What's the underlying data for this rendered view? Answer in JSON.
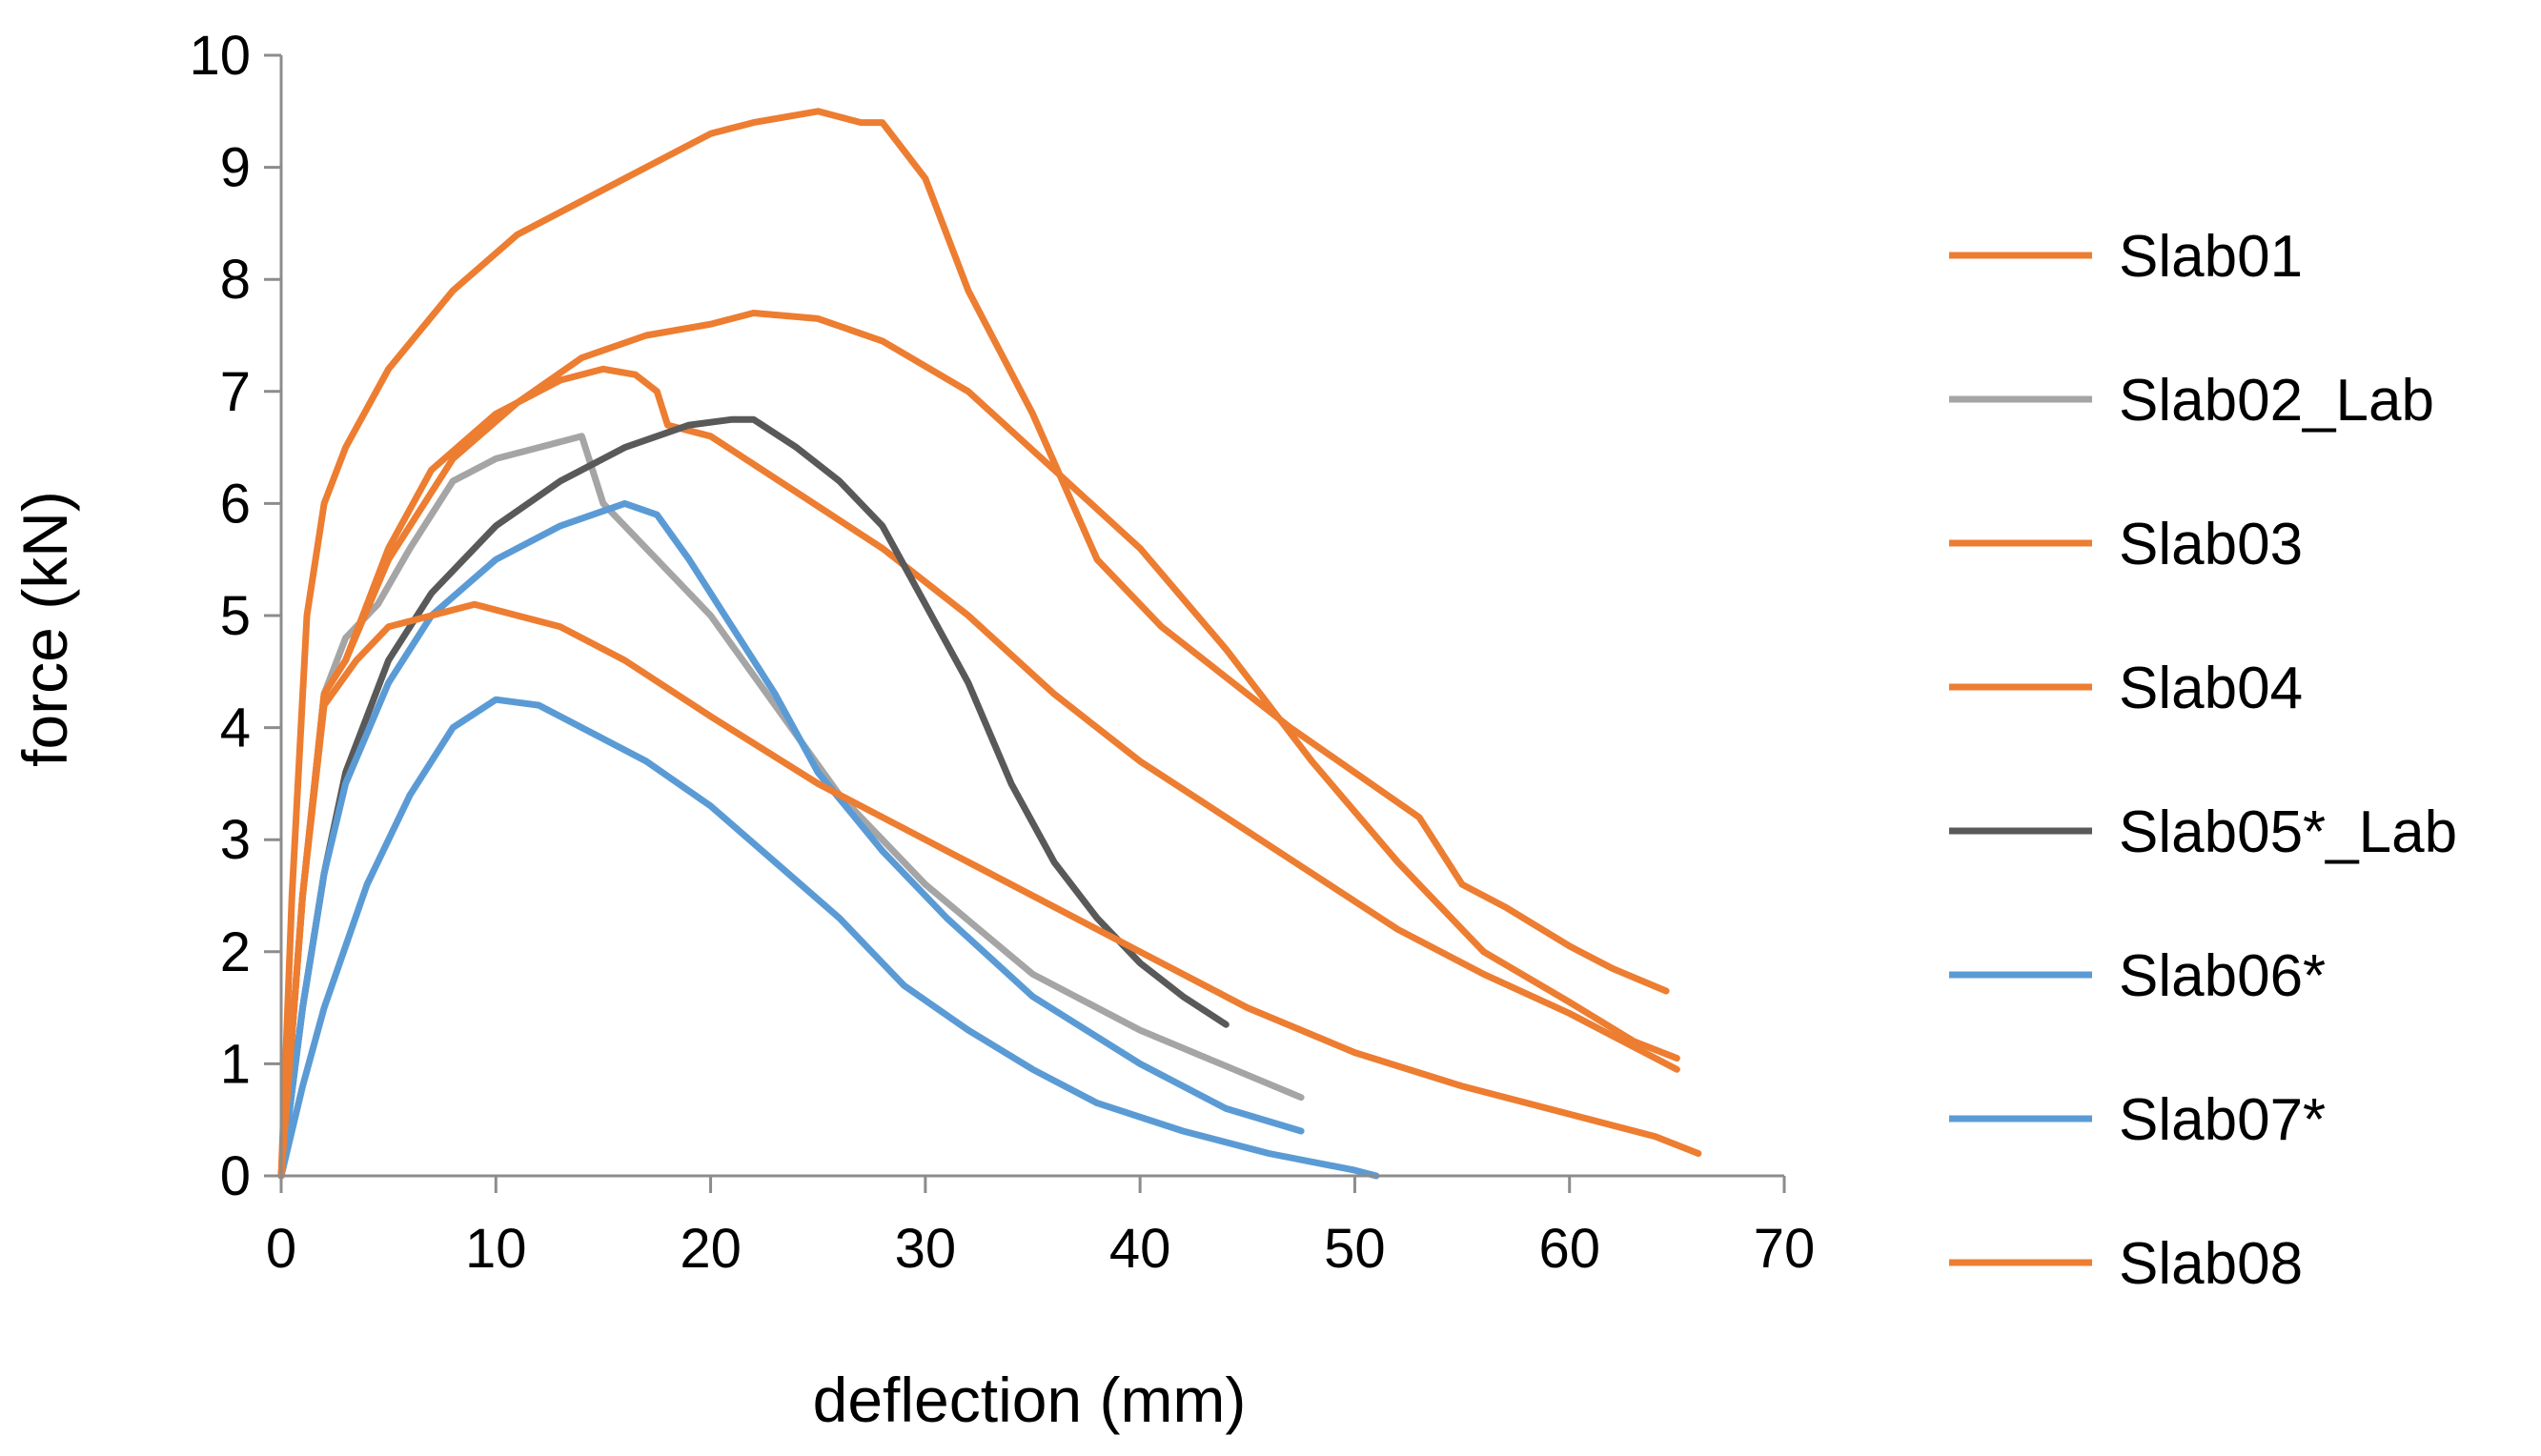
{
  "chart_data": {
    "type": "line",
    "title": "",
    "xlabel": "deflection (mm)",
    "ylabel": "force (kN)",
    "xlim": [
      0,
      70
    ],
    "ylim": [
      0,
      10
    ],
    "xticks": [
      0,
      10,
      20,
      30,
      40,
      50,
      60,
      70
    ],
    "yticks": [
      0,
      1,
      2,
      3,
      4,
      5,
      6,
      7,
      8,
      9,
      10
    ],
    "grid": false,
    "legend_position": "right",
    "series": [
      {
        "name": "Slab01",
        "color": "#ED7D31",
        "x": [
          0,
          0.5,
          1.2,
          2,
          3,
          5,
          8,
          11,
          13,
          15,
          18,
          20,
          22,
          25,
          27,
          28,
          30,
          32,
          35,
          38,
          41,
          44,
          47,
          50,
          53,
          55,
          57,
          60,
          62,
          64.5
        ],
        "y": [
          0,
          2.5,
          5.0,
          6.0,
          6.5,
          7.2,
          7.9,
          8.4,
          8.6,
          8.8,
          9.1,
          9.3,
          9.4,
          9.5,
          9.4,
          9.4,
          8.9,
          7.9,
          6.8,
          5.5,
          4.9,
          4.45,
          4.0,
          3.6,
          3.2,
          2.6,
          2.4,
          2.05,
          1.85,
          1.65
        ]
      },
      {
        "name": "Slab02_Lab",
        "color": "#A5A5A5",
        "x": [
          0,
          1,
          2,
          3,
          4.5,
          6,
          8,
          10,
          12,
          14,
          15,
          17,
          20,
          23,
          26,
          30,
          35,
          40,
          45,
          47.5
        ],
        "y": [
          0,
          2.5,
          4.3,
          4.8,
          5.1,
          5.6,
          6.2,
          6.4,
          6.5,
          6.6,
          6.0,
          5.6,
          5.0,
          4.2,
          3.4,
          2.6,
          1.8,
          1.3,
          0.9,
          0.7
        ]
      },
      {
        "name": "Slab03",
        "color": "#ED7D31",
        "x": [
          0,
          1,
          2,
          3,
          5,
          8,
          11,
          14,
          17,
          20,
          22,
          25,
          28,
          32,
          36,
          40,
          44,
          48,
          52,
          56,
          60,
          63,
          65
        ],
        "y": [
          0,
          2.5,
          4.3,
          4.6,
          5.5,
          6.4,
          6.9,
          7.3,
          7.5,
          7.6,
          7.7,
          7.65,
          7.45,
          7.0,
          6.3,
          5.6,
          4.7,
          3.7,
          2.8,
          2.0,
          1.55,
          1.2,
          1.05
        ]
      },
      {
        "name": "Slab04",
        "color": "#ED7D31",
        "x": [
          0,
          1,
          2,
          3,
          5,
          7,
          10,
          13,
          15,
          16.5,
          17.5,
          18,
          20,
          24,
          28,
          32,
          36,
          40,
          44,
          48,
          52,
          56,
          60,
          63,
          65
        ],
        "y": [
          0,
          2.5,
          4.3,
          4.6,
          5.6,
          6.3,
          6.8,
          7.1,
          7.2,
          7.15,
          7.0,
          6.7,
          6.6,
          6.1,
          5.6,
          5.0,
          4.3,
          3.7,
          3.2,
          2.7,
          2.2,
          1.8,
          1.45,
          1.15,
          0.95
        ]
      },
      {
        "name": "Slab05*_Lab",
        "color": "#595959",
        "x": [
          0,
          1,
          2,
          3,
          5,
          7,
          10,
          13,
          16,
          19,
          21,
          22,
          24,
          26,
          28,
          30,
          32,
          34,
          36,
          38,
          40,
          42,
          44
        ],
        "y": [
          0,
          1.5,
          2.7,
          3.6,
          4.6,
          5.2,
          5.8,
          6.2,
          6.5,
          6.7,
          6.75,
          6.75,
          6.5,
          6.2,
          5.8,
          5.1,
          4.4,
          3.5,
          2.8,
          2.3,
          1.9,
          1.6,
          1.35
        ]
      },
      {
        "name": "Slab06*",
        "color": "#5B9BD5",
        "x": [
          0,
          1,
          2,
          3,
          5,
          7,
          10,
          13,
          16,
          17.5,
          19,
          21,
          23,
          25,
          28,
          31,
          35,
          40,
          44,
          47.5
        ],
        "y": [
          0,
          1.5,
          2.7,
          3.5,
          4.4,
          5.0,
          5.5,
          5.8,
          6.0,
          5.9,
          5.5,
          4.9,
          4.3,
          3.6,
          2.9,
          2.3,
          1.6,
          1.0,
          0.6,
          0.4
        ]
      },
      {
        "name": "Slab07*",
        "color": "#5B9BD5",
        "x": [
          0,
          1,
          2,
          4,
          6,
          8,
          10,
          12,
          14,
          17,
          20,
          23,
          26,
          29,
          32,
          35,
          38,
          42,
          46,
          50,
          51
        ],
        "y": [
          0,
          0.8,
          1.5,
          2.6,
          3.4,
          4.0,
          4.25,
          4.2,
          4.0,
          3.7,
          3.3,
          2.8,
          2.3,
          1.7,
          1.3,
          0.95,
          0.65,
          0.4,
          0.2,
          0.05,
          0
        ]
      },
      {
        "name": "Slab08",
        "color": "#ED7D31",
        "x": [
          0,
          1,
          2,
          3.5,
          5,
          7,
          9,
          11,
          13,
          16,
          20,
          25,
          30,
          35,
          40,
          45,
          50,
          55,
          60,
          64,
          66
        ],
        "y": [
          0,
          2.5,
          4.2,
          4.6,
          4.9,
          5.0,
          5.1,
          5.0,
          4.9,
          4.6,
          4.1,
          3.5,
          3.0,
          2.5,
          2.0,
          1.5,
          1.1,
          0.8,
          0.55,
          0.35,
          0.2
        ]
      }
    ]
  }
}
